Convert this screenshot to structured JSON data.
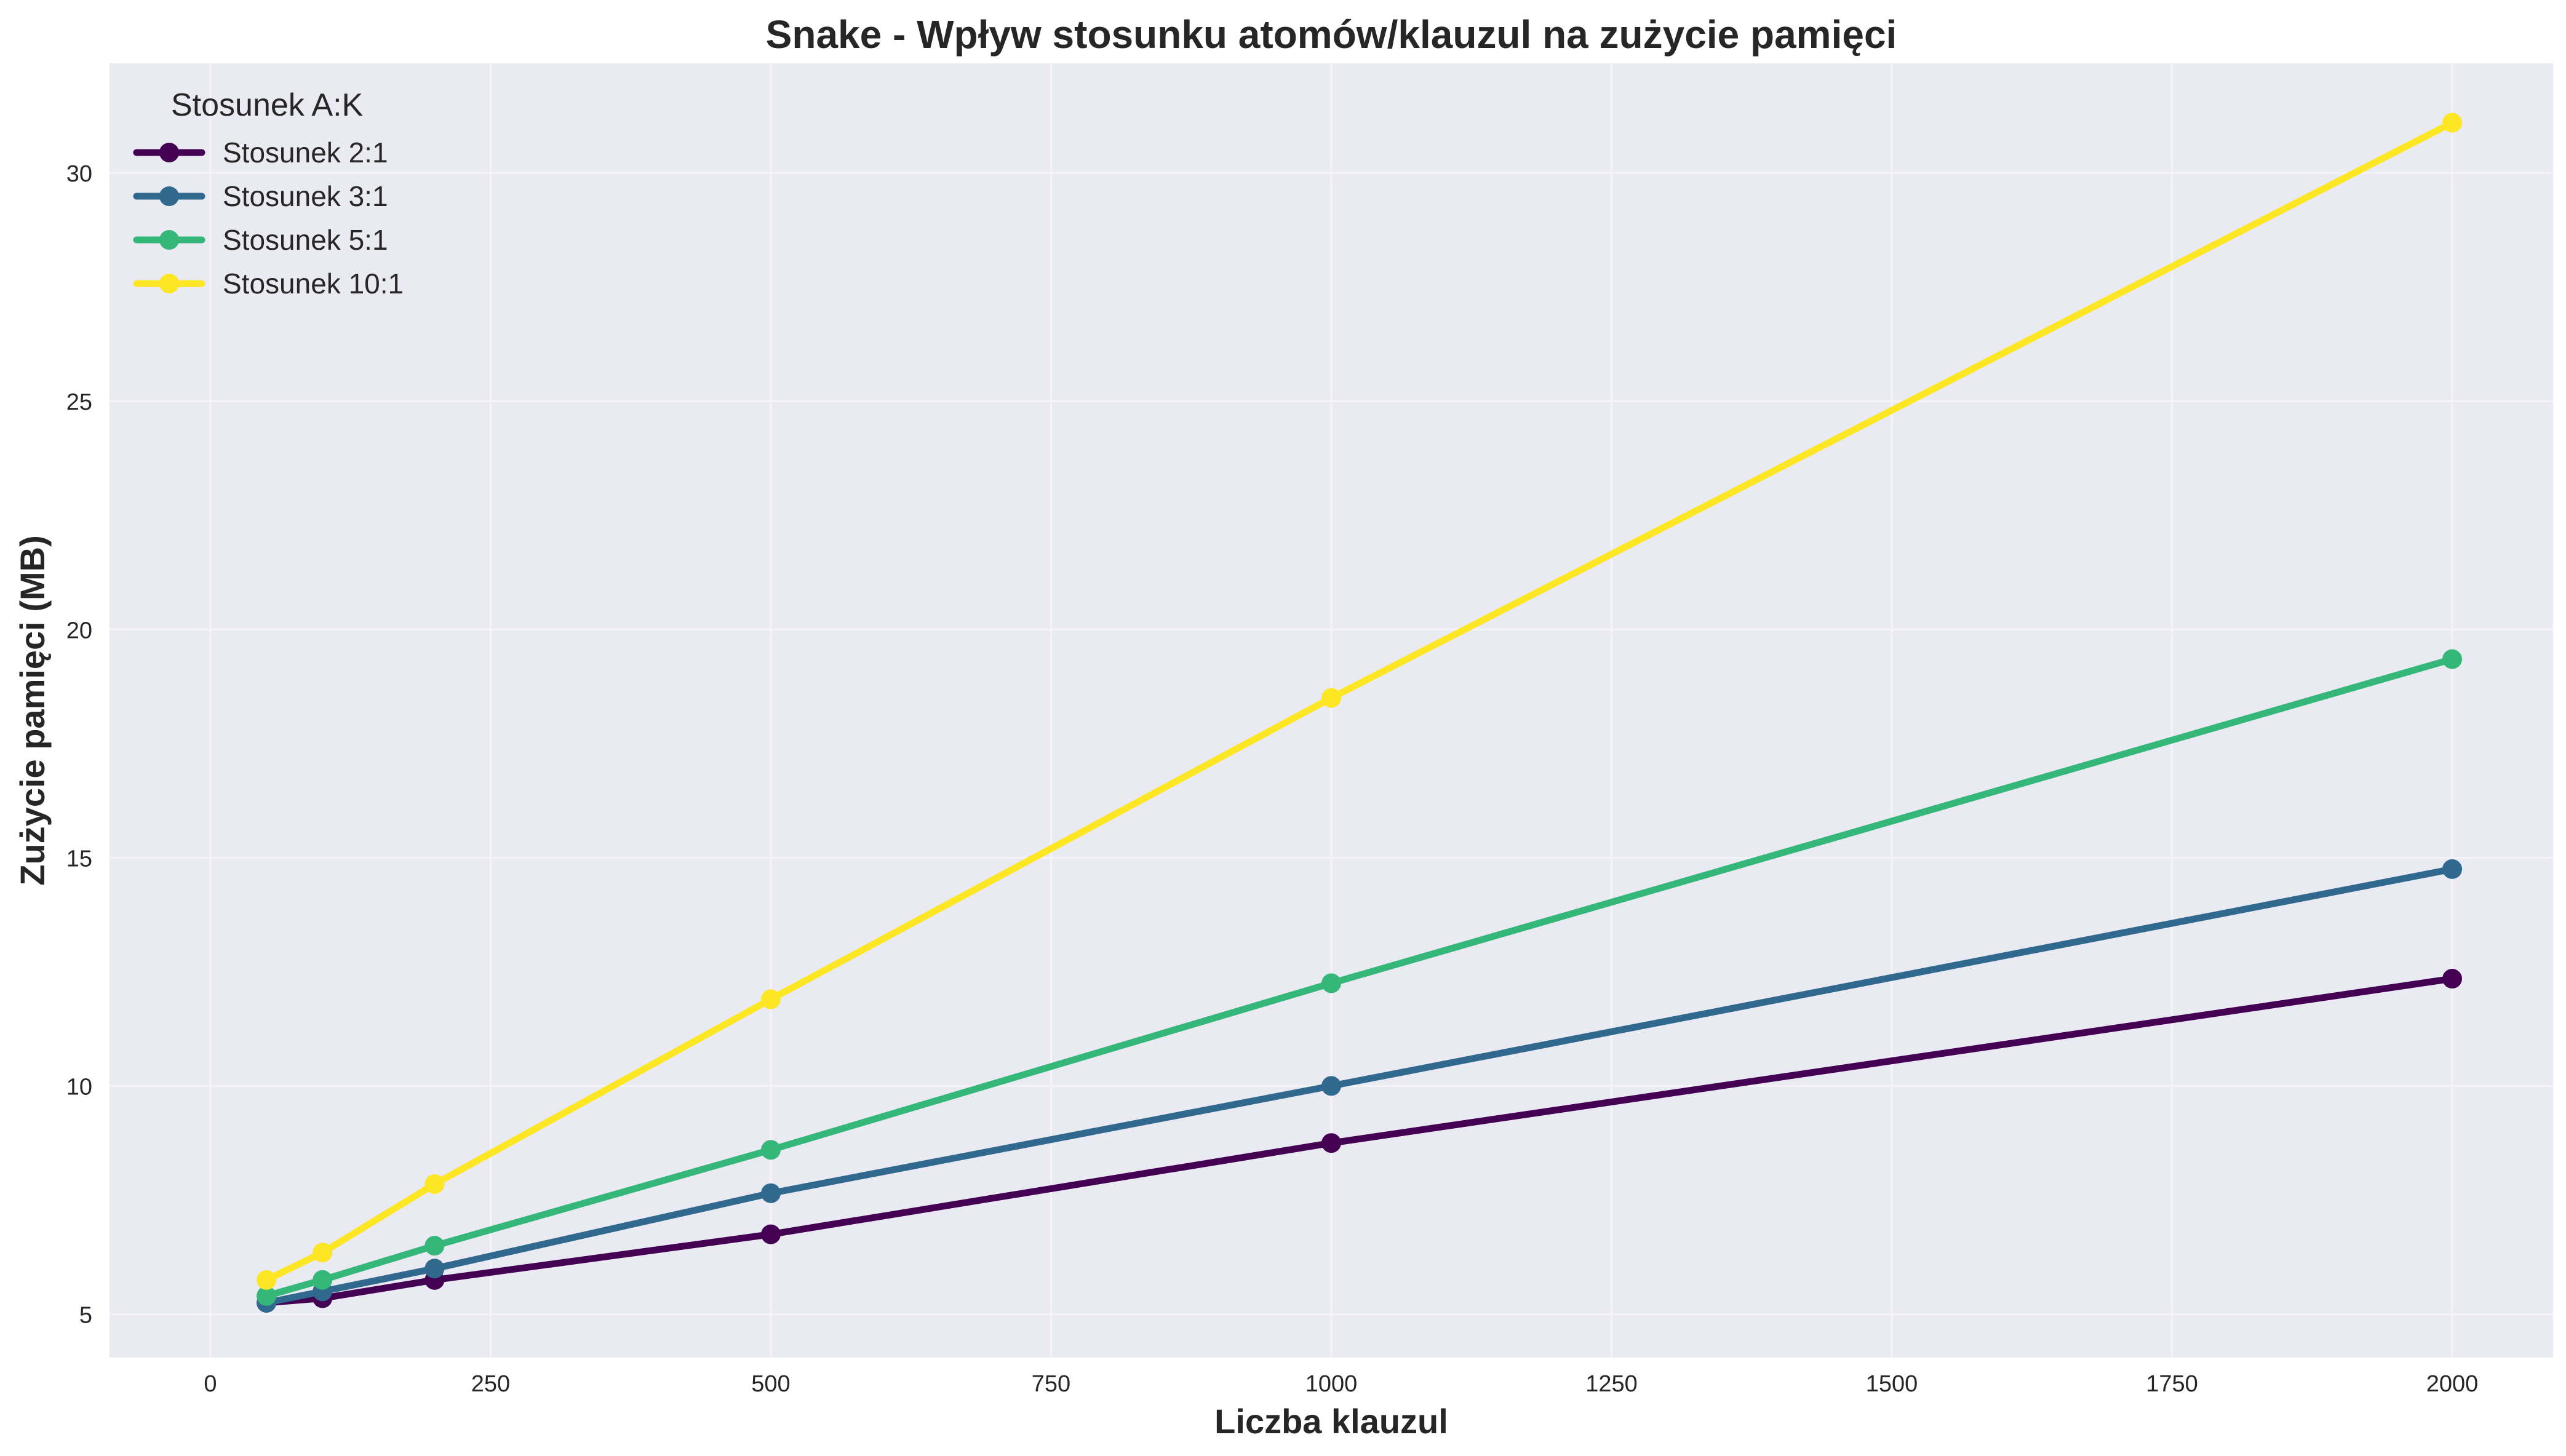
{
  "chart_data": {
    "type": "line",
    "title": "Snake - Wpływ stosunku atomów/klauzul na zużycie pamięci",
    "xlabel": "Liczba klauzul",
    "ylabel": "Zużycie pamięci (MB)",
    "xlim": [
      -90,
      2090
    ],
    "ylim": [
      4.05,
      32.4
    ],
    "x_ticks": [
      0,
      250,
      500,
      750,
      1000,
      1250,
      1500,
      1750,
      2000
    ],
    "y_ticks": [
      5,
      10,
      15,
      20,
      25,
      30
    ],
    "grid": true,
    "background": "#eaeaf2",
    "legend": {
      "title": "Stosunek A:K",
      "placement": "top-left"
    },
    "x": [
      50,
      100,
      200,
      500,
      1000,
      2000
    ],
    "series": [
      {
        "name": "Stosunek 2:1",
        "color": "#440154",
        "values": [
          5.25,
          5.35,
          5.75,
          6.75,
          8.75,
          12.35
        ]
      },
      {
        "name": "Stosunek 3:1",
        "color": "#31688e",
        "values": [
          5.25,
          5.5,
          6.0,
          7.65,
          10.0,
          14.75
        ]
      },
      {
        "name": "Stosunek 5:1",
        "color": "#35b779",
        "values": [
          5.4,
          5.75,
          6.5,
          8.6,
          12.25,
          19.35
        ]
      },
      {
        "name": "Stosunek 10:1",
        "color": "#fde725",
        "values": [
          5.75,
          6.35,
          7.85,
          11.9,
          18.5,
          31.1
        ]
      }
    ]
  }
}
